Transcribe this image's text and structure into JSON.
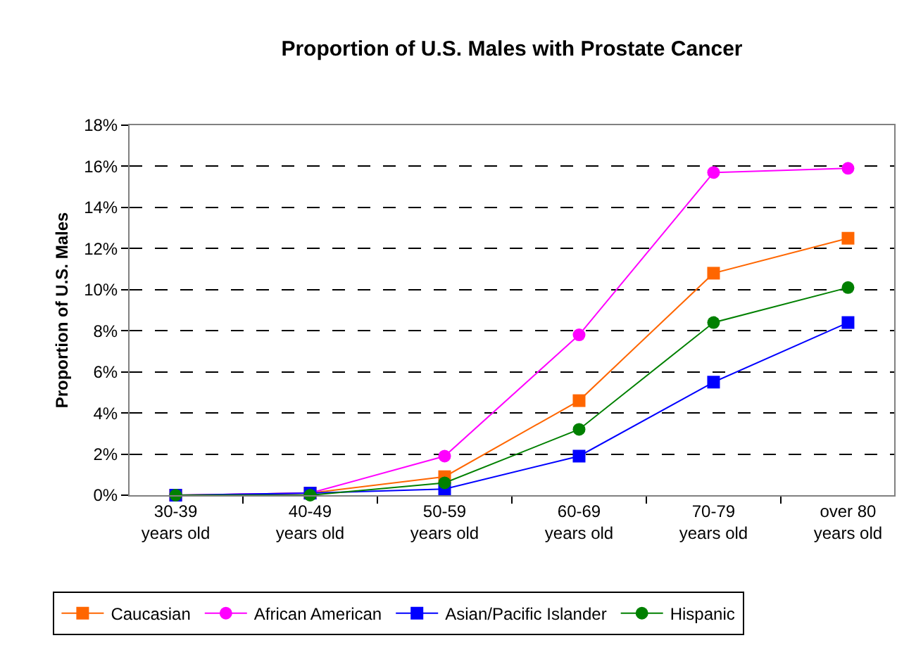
{
  "chart_data": {
    "type": "line",
    "title": "Proportion of U.S. Males with Prostate Cancer",
    "ylabel": "Proportion of U.S. Males",
    "categories": [
      "30-39\nyears old",
      "40-49\nyears old",
      "50-59\nyears old",
      "60-69\nyears old",
      "70-79\nyears old",
      "over 80\nyears old"
    ],
    "series": [
      {
        "name": "Caucasian",
        "color": "#ff6600",
        "marker": "square",
        "values": [
          0,
          0.1,
          0.9,
          4.6,
          10.8,
          12.5
        ]
      },
      {
        "name": "African American",
        "color": "#ff00ff",
        "marker": "circle",
        "values": [
          0,
          0.1,
          1.9,
          7.8,
          15.7,
          15.9
        ]
      },
      {
        "name": "Asian/Pacific Islander",
        "color": "#0000ff",
        "marker": "square",
        "values": [
          0,
          0.1,
          0.3,
          1.9,
          5.5,
          8.4
        ]
      },
      {
        "name": "Hispanic",
        "color": "#008000",
        "marker": "circle",
        "values": [
          0,
          0,
          0.6,
          3.2,
          8.4,
          10.1
        ]
      }
    ],
    "ylim": [
      0,
      18
    ],
    "yticks": [
      {
        "value": 0,
        "label": "0%"
      },
      {
        "value": 2,
        "label": "2%"
      },
      {
        "value": 4,
        "label": "4%"
      },
      {
        "value": 6,
        "label": "6%"
      },
      {
        "value": 8,
        "label": "8%"
      },
      {
        "value": 10,
        "label": "10%"
      },
      {
        "value": 12,
        "label": "12%"
      },
      {
        "value": 14,
        "label": "14%"
      },
      {
        "value": 16,
        "label": "16%"
      },
      {
        "value": 18,
        "label": "18%"
      }
    ],
    "grid": "y",
    "legend": "bottom",
    "line_style": "solid"
  }
}
